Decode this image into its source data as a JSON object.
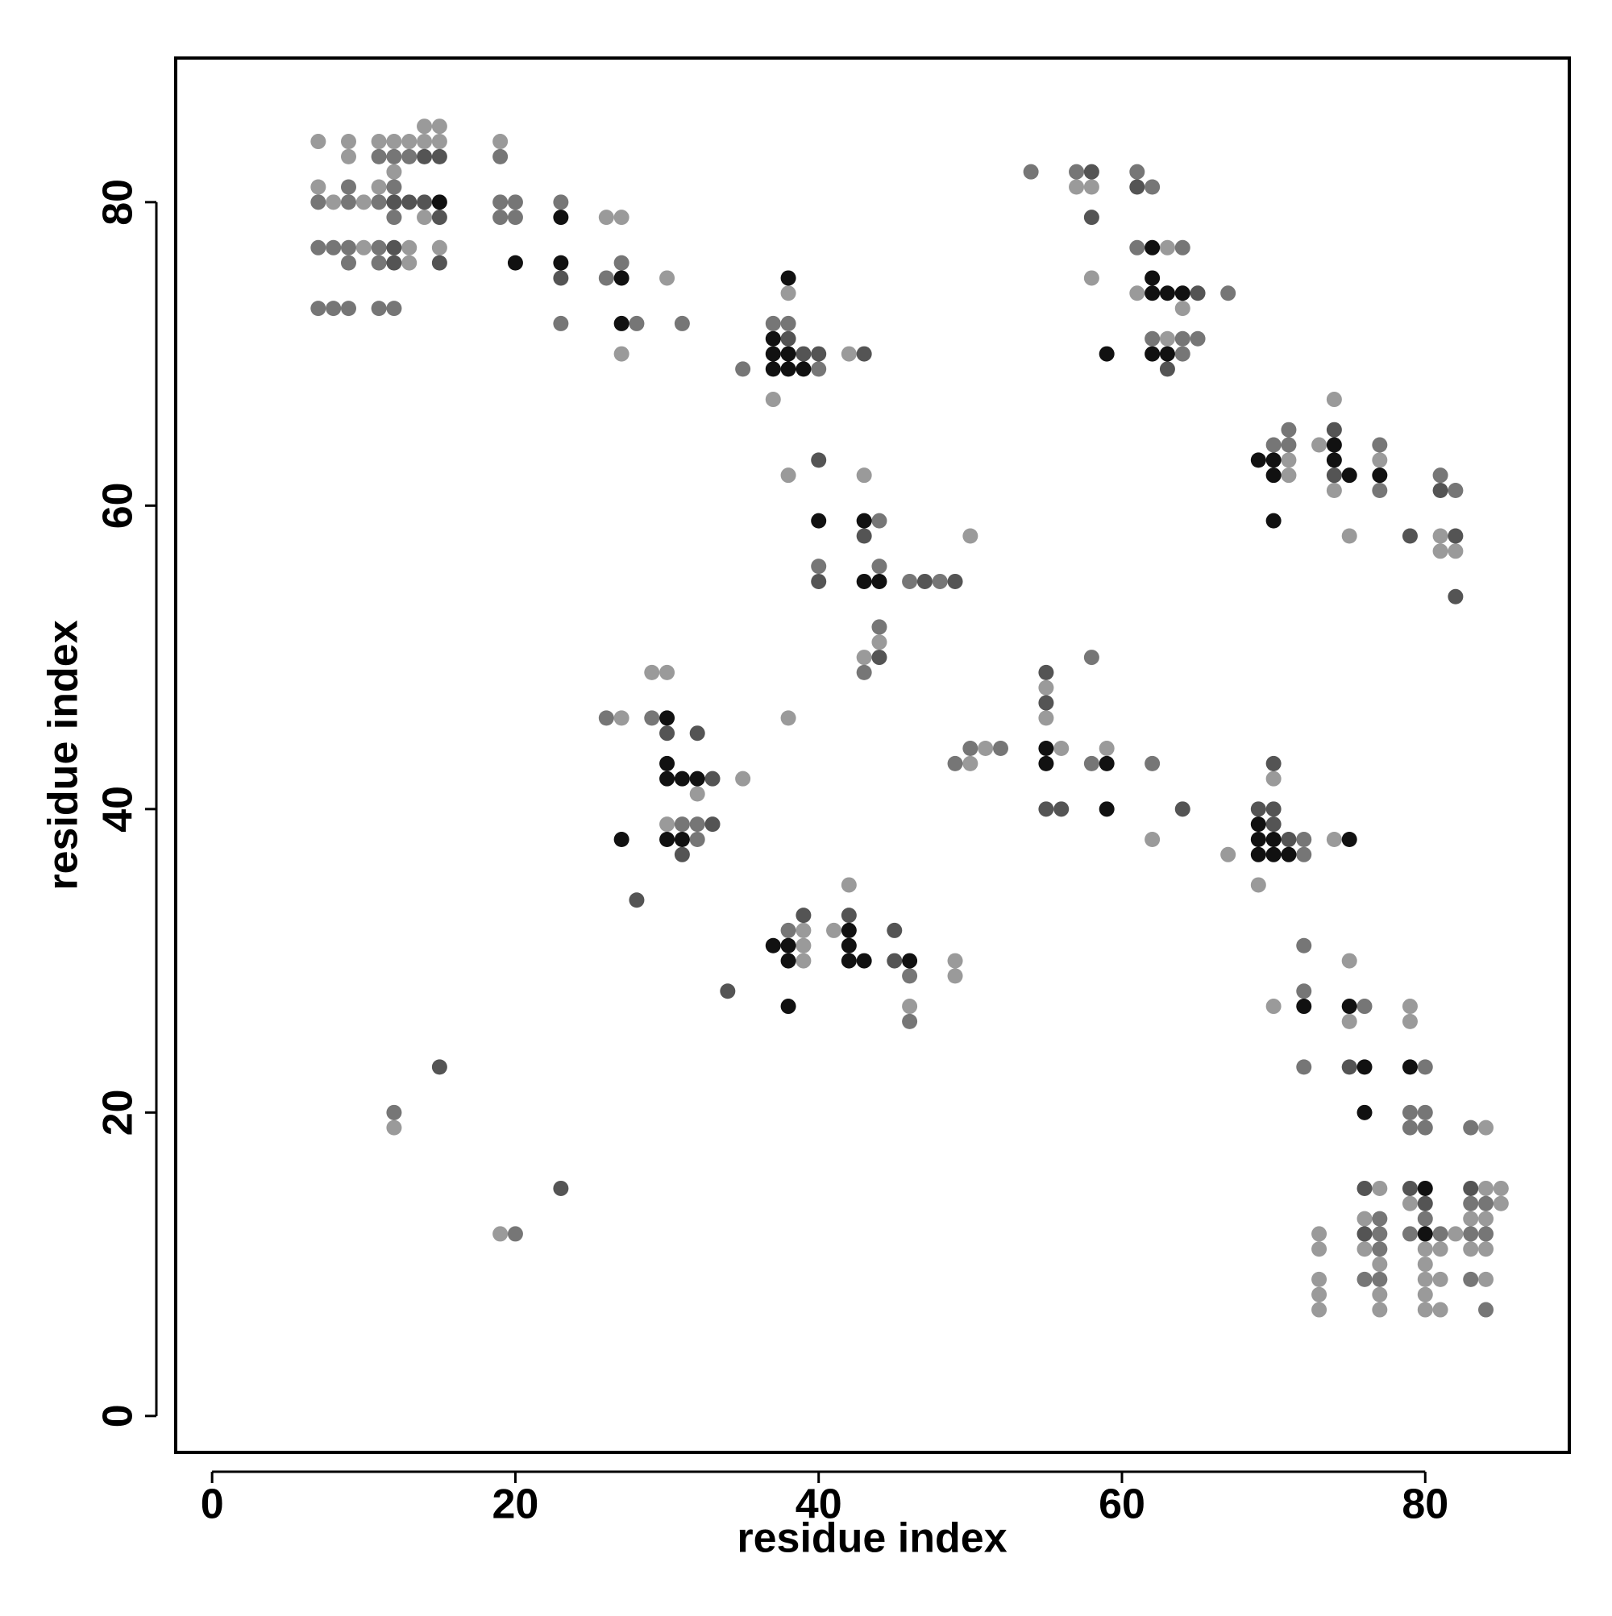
{
  "chart_data": {
    "type": "scatter",
    "xlabel": "residue index",
    "ylabel": "residue index",
    "xlim": [
      -2.4,
      89.5
    ],
    "ylim": [
      -2.4,
      89.5
    ],
    "xticks": [
      0,
      20,
      40,
      60,
      80
    ],
    "yticks": [
      0,
      20,
      40,
      60,
      80
    ],
    "grid": false,
    "series": [
      {
        "color": "#9a9a9a",
        "x": [
          7,
          9,
          11,
          12,
          13,
          14,
          15,
          14,
          15,
          19,
          9,
          12,
          7,
          11,
          8,
          10,
          14,
          26,
          27,
          10,
          13,
          15,
          13,
          30,
          27,
          38,
          42,
          37,
          38,
          43,
          50,
          44,
          43,
          57,
          58,
          63,
          58,
          61,
          64,
          63,
          74,
          73,
          71,
          77,
          71,
          74,
          75,
          81,
          81,
          82,
          29,
          30,
          27,
          35,
          32,
          30,
          38,
          55,
          55,
          51,
          56,
          59,
          50,
          62,
          70,
          74,
          67,
          69,
          42,
          39,
          41,
          39,
          39,
          49,
          49,
          46,
          12,
          19,
          75,
          70,
          79,
          75,
          79,
          84,
          77,
          84,
          85,
          79,
          85,
          76,
          83,
          84,
          73,
          82,
          73,
          76,
          80,
          81,
          83,
          84,
          77,
          80,
          73,
          80,
          81,
          84,
          73,
          77,
          80,
          73,
          77,
          80,
          81
        ],
        "values": [
          84,
          84,
          84,
          84,
          84,
          84,
          84,
          85,
          85,
          84,
          83,
          82,
          81,
          81,
          80,
          80,
          79,
          79,
          79,
          77,
          77,
          77,
          76,
          75,
          70,
          74,
          70,
          67,
          62,
          62,
          58,
          51,
          50,
          81,
          81,
          77,
          75,
          74,
          73,
          71,
          67,
          64,
          63,
          63,
          62,
          61,
          58,
          58,
          57,
          57,
          49,
          49,
          46,
          42,
          41,
          39,
          46,
          48,
          46,
          44,
          44,
          44,
          43,
          38,
          42,
          38,
          37,
          35,
          35,
          32,
          32,
          31,
          30,
          30,
          29,
          27,
          19,
          12,
          30,
          27,
          27,
          26,
          26,
          19,
          15,
          15,
          15,
          14,
          14,
          13,
          13,
          13,
          12,
          12,
          11,
          11,
          11,
          11,
          11,
          11,
          10,
          10,
          9,
          9,
          9,
          9,
          8,
          8,
          8,
          7,
          7,
          7,
          7
        ]
      },
      {
        "color": "#767676",
        "x": [
          11,
          12,
          13,
          19,
          9,
          12,
          7,
          9,
          11,
          19,
          20,
          23,
          12,
          19,
          20,
          7,
          8,
          9,
          11,
          9,
          11,
          27,
          26,
          7,
          8,
          9,
          11,
          12,
          23,
          28,
          31,
          37,
          38,
          35,
          40,
          44,
          40,
          44,
          46,
          48,
          44,
          43,
          54,
          57,
          61,
          62,
          61,
          64,
          67,
          62,
          64,
          65,
          64,
          71,
          70,
          71,
          77,
          81,
          77,
          82,
          26,
          29,
          31,
          32,
          32,
          58,
          50,
          52,
          49,
          58,
          62,
          72,
          72,
          38,
          46,
          46,
          12,
          20,
          72,
          72,
          76,
          72,
          80,
          79,
          80,
          79,
          80,
          83,
          83,
          84,
          77,
          80,
          77,
          79,
          81,
          83,
          84,
          77,
          76,
          77,
          83,
          84
        ],
        "values": [
          83,
          83,
          83,
          83,
          81,
          81,
          80,
          80,
          80,
          80,
          80,
          80,
          79,
          79,
          79,
          77,
          77,
          77,
          77,
          76,
          76,
          76,
          75,
          73,
          73,
          73,
          73,
          73,
          72,
          72,
          72,
          72,
          72,
          69,
          69,
          59,
          56,
          56,
          55,
          55,
          52,
          49,
          82,
          82,
          82,
          81,
          77,
          77,
          74,
          71,
          71,
          71,
          70,
          65,
          64,
          64,
          64,
          62,
          61,
          61,
          46,
          46,
          39,
          39,
          38,
          50,
          44,
          44,
          43,
          43,
          43,
          38,
          37,
          32,
          29,
          26,
          20,
          12,
          31,
          28,
          27,
          23,
          23,
          20,
          20,
          19,
          19,
          19,
          14,
          14,
          13,
          13,
          12,
          12,
          12,
          12,
          12,
          11,
          9,
          9,
          9,
          7
        ]
      },
      {
        "color": "#545454",
        "x": [
          14,
          15,
          12,
          13,
          14,
          15,
          12,
          12,
          15,
          23,
          38,
          39,
          40,
          43,
          40,
          43,
          40,
          47,
          49,
          44,
          58,
          61,
          58,
          65,
          63,
          74,
          74,
          81,
          79,
          82,
          82,
          30,
          32,
          33,
          33,
          31,
          28,
          55,
          55,
          55,
          56,
          64,
          70,
          69,
          70,
          70,
          71,
          39,
          42,
          45,
          45,
          34,
          15,
          23,
          75,
          76,
          79,
          83,
          80,
          76
        ],
        "values": [
          83,
          83,
          80,
          80,
          80,
          79,
          77,
          76,
          76,
          75,
          71,
          70,
          70,
          70,
          63,
          58,
          55,
          55,
          55,
          50,
          82,
          81,
          79,
          74,
          69,
          65,
          62,
          61,
          58,
          58,
          54,
          45,
          45,
          42,
          39,
          37,
          34,
          49,
          47,
          40,
          40,
          40,
          43,
          40,
          40,
          39,
          38,
          33,
          33,
          32,
          30,
          28,
          23,
          15,
          23,
          15,
          15,
          15,
          14,
          12
        ]
      },
      {
        "color": "#111111",
        "x": [
          15,
          23,
          20,
          23,
          27,
          27,
          38,
          37,
          37,
          38,
          37,
          38,
          39,
          40,
          43,
          43,
          44,
          62,
          62,
          62,
          63,
          64,
          59,
          62,
          63,
          74,
          69,
          70,
          74,
          70,
          75,
          77,
          70,
          30,
          30,
          30,
          31,
          32,
          27,
          30,
          31,
          55,
          55,
          59,
          59,
          69,
          69,
          70,
          75,
          69,
          70,
          71,
          42,
          37,
          38,
          42,
          38,
          42,
          43,
          46,
          38,
          72,
          75,
          76,
          79,
          76,
          80,
          80
        ],
        "values": [
          80,
          79,
          76,
          76,
          75,
          72,
          75,
          71,
          70,
          70,
          69,
          69,
          69,
          59,
          59,
          55,
          55,
          77,
          75,
          74,
          74,
          74,
          70,
          70,
          70,
          64,
          63,
          63,
          63,
          62,
          62,
          62,
          59,
          46,
          43,
          42,
          42,
          42,
          38,
          38,
          38,
          44,
          43,
          43,
          40,
          39,
          38,
          38,
          38,
          37,
          37,
          37,
          32,
          31,
          31,
          31,
          30,
          30,
          30,
          30,
          27,
          27,
          27,
          23,
          23,
          20,
          15,
          12
        ]
      }
    ]
  }
}
